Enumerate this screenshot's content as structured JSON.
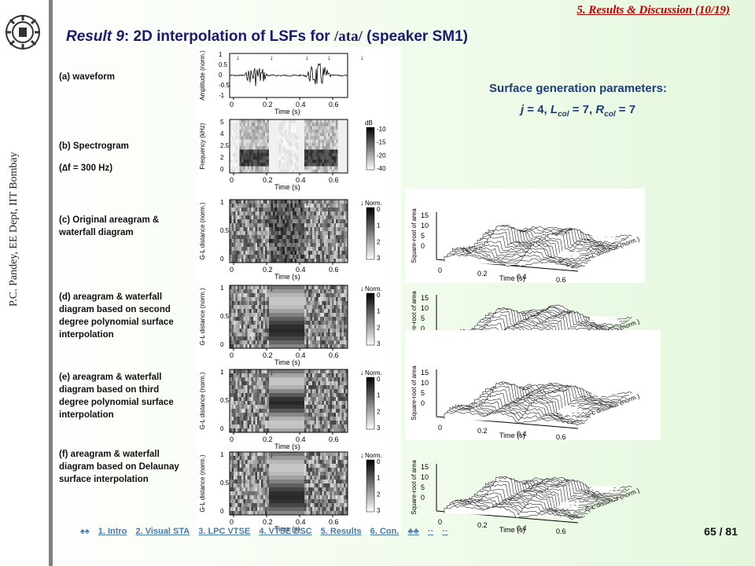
{
  "header": {
    "section": "5. Results & Discussion (10/19)"
  },
  "title": {
    "prefix": "Result 9",
    "main": ": 2D interpolation of LSFs for ",
    "phoneme": "/ata/",
    "suffix": " (speaker SM1)"
  },
  "sidebar": {
    "author": "P.C. Pandey, EE Dept, IIT Bombay"
  },
  "params": {
    "heading": "Surface generation parameters:"
  },
  "labels": {
    "a": "(a) waveform",
    "b1": "(b) Spectrogram",
    "b2": "(∆f = 300 Hz)",
    "c": "(c) Original areagram & waterfall diagram",
    "d": "(d) areagram & waterfall diagram based on second degree polynomial surface interpolation",
    "e": "(e) areagram & waterfall diagram based on third degree polynomial surface interpolation",
    "f": "(f) areagram & waterfall diagram based on Delaunay surface interpolation"
  },
  "axes": {
    "time": "Time (s)",
    "amp": "Amplitude (norm.)",
    "freq": "Frequency (kHz)",
    "gl": "G-L distance (norm.)",
    "sqrt": "Square-root of area",
    "db": "dB",
    "norm": "Norm."
  },
  "nav": {
    "items": [
      "♠♠",
      "1. Intro",
      "2. Visual STA",
      "3. LPC VTSE",
      "4. VTSE DSC",
      "5. Results",
      "6. Con.",
      "♣♣",
      "··",
      "··"
    ],
    "page": "65 / 81"
  }
}
